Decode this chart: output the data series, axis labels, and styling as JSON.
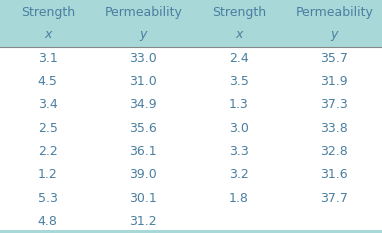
{
  "col1_header1": "Strength",
  "col1_header2": "x",
  "col2_header1": "Permeability",
  "col2_header2": "y",
  "col3_header1": "Strength",
  "col3_header2": "x",
  "col4_header1": "Permeability",
  "col4_header2": "y",
  "col1_data": [
    "3.1",
    "4.5",
    "3.4",
    "2.5",
    "2.2",
    "1.2",
    "5.3",
    "4.8"
  ],
  "col2_data": [
    "33.0",
    "31.0",
    "34.9",
    "35.6",
    "36.1",
    "39.0",
    "30.1",
    "31.2"
  ],
  "col3_data": [
    "2.4",
    "3.5",
    "1.3",
    "3.0",
    "3.3",
    "3.2",
    "1.8",
    ""
  ],
  "col4_data": [
    "35.7",
    "31.9",
    "37.3",
    "33.8",
    "32.8",
    "31.6",
    "37.7",
    ""
  ],
  "header_bg": "#a8d8d8",
  "body_bg": "#ffffff",
  "outer_bg": "#b8e0e0",
  "text_color": "#4a7fa0",
  "figsize": [
    3.82,
    2.33
  ],
  "dpi": 100
}
